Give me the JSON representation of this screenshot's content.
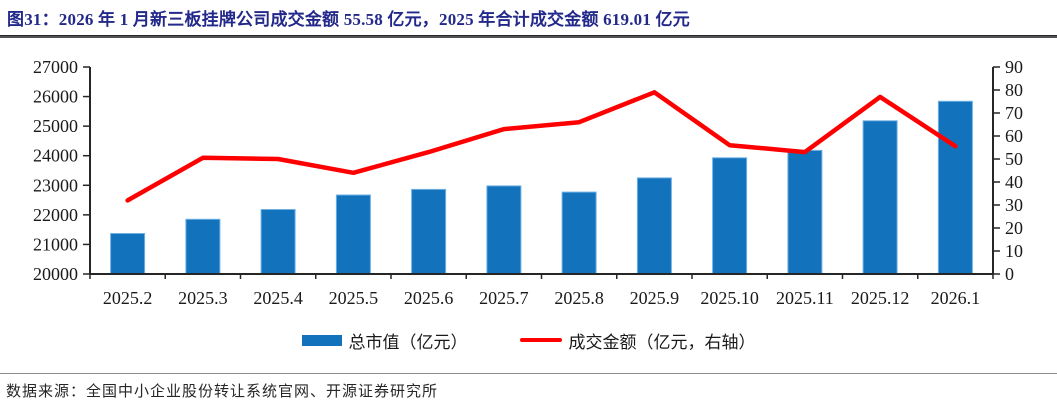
{
  "header": {
    "title": "图31：2026 年 1 月新三板挂牌公司成交金额 55.58 亿元，2025 年合计成交金额 619.01 亿元"
  },
  "chart_data": {
    "type": "combo",
    "title": "图31：2026 年 1 月新三板挂牌公司成交金额 55.58 亿元，2025 年合计成交金额 619.01 亿元",
    "categories": [
      "2025.2",
      "2025.3",
      "2025.4",
      "2025.5",
      "2025.6",
      "2025.7",
      "2025.8",
      "2025.9",
      "2025.10",
      "2025.11",
      "2025.12",
      "2026.1"
    ],
    "series": [
      {
        "name": "总市值（亿元）",
        "type": "bar",
        "axis": "left",
        "color": "#1272BC",
        "border_color": "#6FB1E4",
        "values": [
          21370,
          21850,
          22180,
          22670,
          22860,
          22980,
          22770,
          23250,
          23930,
          24180,
          25180,
          25840
        ]
      },
      {
        "name": "成交金额（亿元，右轴）",
        "type": "line",
        "axis": "right",
        "color": "#FF0000",
        "values": [
          32,
          50.5,
          50,
          44,
          53,
          63,
          66,
          79,
          56,
          53,
          77,
          55.58
        ]
      }
    ],
    "left_axis": {
      "min": 20000,
      "max": 27000,
      "step": 1000
    },
    "right_axis": {
      "min": 0,
      "max": 90,
      "step": 10
    },
    "grid": false,
    "legend_position": "bottom"
  },
  "footer": {
    "source": "数据来源：全国中小企业股份转让系统官网、开源证券研究所"
  },
  "colors": {
    "title_text": "#23298A",
    "bar_fill": "#1272BC",
    "line_stroke": "#FF0000",
    "axis_line": "#262626"
  }
}
